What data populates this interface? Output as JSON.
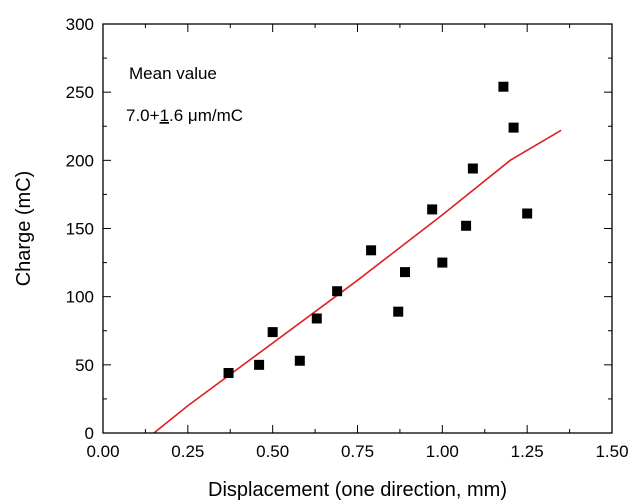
{
  "chart_data": {
    "type": "scatter",
    "xlabel": "Displacement (one direction, mm)",
    "ylabel": "Charge (mC)",
    "xlim": [
      0.0,
      1.5
    ],
    "ylim": [
      0,
      300
    ],
    "x_ticks": [
      "0.00",
      "0.25",
      "0.50",
      "0.75",
      "1.00",
      "1.25",
      "1.50"
    ],
    "y_ticks": [
      "0",
      "50",
      "100",
      "150",
      "200",
      "250",
      "300"
    ],
    "grid": false,
    "annotations": {
      "line1": "Mean value",
      "line2_prefix": "7.0+",
      "line2_underlined": "1",
      "line2_suffix": ".6 μm/mC"
    },
    "series": [
      {
        "marker": "square",
        "color": "#000000",
        "points": [
          {
            "x": 0.37,
            "y": 44
          },
          {
            "x": 0.46,
            "y": 50
          },
          {
            "x": 0.5,
            "y": 74
          },
          {
            "x": 0.58,
            "y": 53
          },
          {
            "x": 0.63,
            "y": 84
          },
          {
            "x": 0.69,
            "y": 104
          },
          {
            "x": 0.79,
            "y": 134
          },
          {
            "x": 0.87,
            "y": 89
          },
          {
            "x": 0.89,
            "y": 118
          },
          {
            "x": 0.97,
            "y": 164
          },
          {
            "x": 1.0,
            "y": 125
          },
          {
            "x": 1.07,
            "y": 152
          },
          {
            "x": 1.09,
            "y": 194
          },
          {
            "x": 1.18,
            "y": 254
          },
          {
            "x": 1.21,
            "y": 224
          },
          {
            "x": 1.25,
            "y": 161
          }
        ]
      },
      {
        "type": "line",
        "color": "#e02020",
        "points": [
          {
            "x": 0.15,
            "y": 0
          },
          {
            "x": 0.25,
            "y": 20
          },
          {
            "x": 0.75,
            "y": 112
          },
          {
            "x": 1.0,
            "y": 160
          },
          {
            "x": 1.2,
            "y": 200
          },
          {
            "x": 1.35,
            "y": 222
          }
        ]
      }
    ]
  }
}
